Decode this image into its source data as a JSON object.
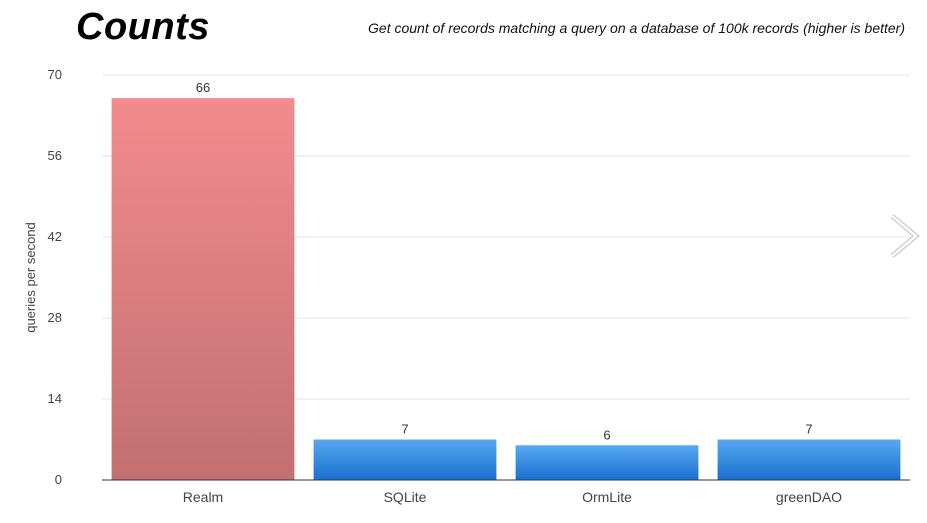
{
  "title": "Counts",
  "subtitle": "Get count of records matching a query on a database of 100k records (higher is better)",
  "colors": {
    "highlight_top": "#f28b8e",
    "highlight_bottom": "#c27071",
    "bar_top": "#58a8f2",
    "bar_bottom": "#1a6fcf",
    "grid": "#e6e6e6",
    "axis": "#333333"
  },
  "nav": {
    "next_icon": "chevron-right-icon"
  },
  "chart_data": {
    "type": "bar",
    "categories": [
      "Realm",
      "SQLite",
      "OrmLite",
      "greenDAO"
    ],
    "values": [
      66,
      7,
      6,
      7
    ],
    "highlight_index": 0,
    "ylabel": "queries per second",
    "ylim": [
      0,
      70
    ],
    "yticks": [
      0,
      14,
      28,
      42,
      56,
      70
    ],
    "grid": true
  }
}
